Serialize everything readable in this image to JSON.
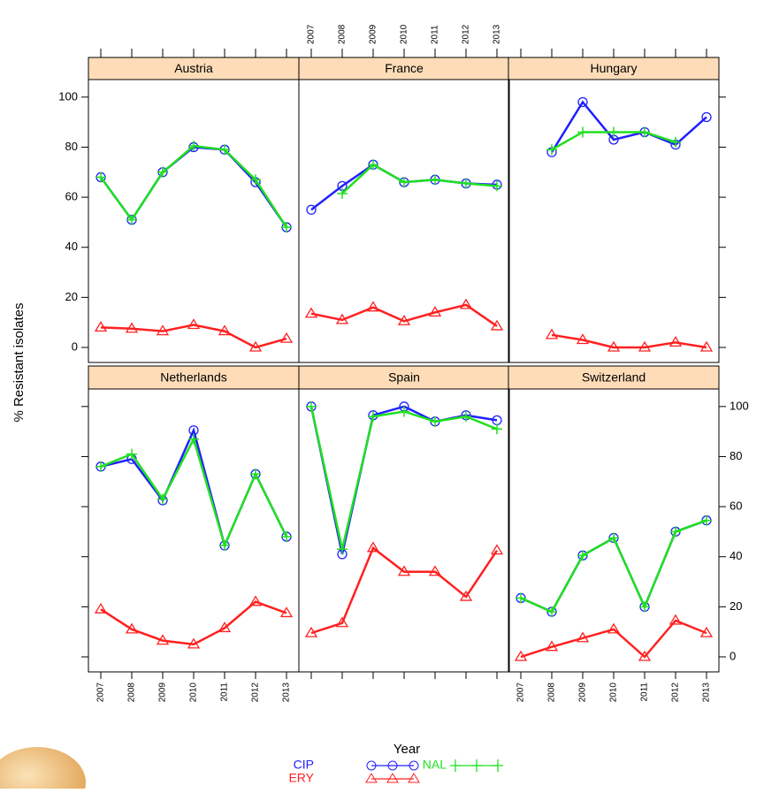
{
  "chart_data": {
    "type": "line",
    "x_label": "Year",
    "y_label": "% Resistant isolates",
    "x": [
      2007,
      2008,
      2009,
      2010,
      2011,
      2012,
      2013
    ],
    "xlim": [
      2006.6,
      2013.4
    ],
    "xticks": [
      2007,
      2008,
      2009,
      2010,
      2011,
      2012,
      2013
    ],
    "ylim": [
      -6,
      107
    ],
    "yticks": [
      0,
      20,
      40,
      60,
      80,
      100
    ],
    "legend": [
      {
        "name": "CIP",
        "color": "#2020ff",
        "marker": "circle"
      },
      {
        "name": "ERY",
        "color": "#ff2020",
        "marker": "triangle"
      },
      {
        "name": "NAL",
        "color": "#20e020",
        "marker": "plus"
      }
    ],
    "panels": [
      {
        "title": "Austria",
        "series": [
          {
            "values": [
              68,
              51,
              70,
              80,
              79,
              66,
              48
            ]
          },
          {
            "values": [
              8,
              7.5,
              6.5,
              9,
              6.5,
              0,
              3.5
            ]
          },
          {
            "values": [
              68,
              51,
              70,
              80.5,
              79,
              67,
              48
            ]
          }
        ]
      },
      {
        "title": "France",
        "series": [
          {
            "values": [
              55,
              64.5,
              73,
              66,
              67,
              65.5,
              65
            ]
          },
          {
            "values": [
              13.5,
              11,
              16,
              10.5,
              14,
              17,
              8.5
            ]
          },
          {
            "values": [
              null,
              61.5,
              73,
              66,
              67,
              65.5,
              64.5
            ]
          }
        ]
      },
      {
        "title": "Hungary",
        "series": [
          {
            "values": [
              null,
              78,
              98,
              83,
              86,
              81,
              92
            ]
          },
          {
            "values": [
              null,
              5,
              3,
              0,
              0,
              2,
              0
            ]
          },
          {
            "values": [
              null,
              79,
              86,
              86,
              86,
              82,
              null
            ]
          }
        ]
      },
      {
        "title": "Netherlands",
        "series": [
          {
            "values": [
              76,
              79,
              62.5,
              90.5,
              44.5,
              73,
              48
            ]
          },
          {
            "values": [
              19,
              11,
              6.5,
              5,
              11.5,
              22,
              17.5
            ]
          },
          {
            "values": [
              76,
              81,
              63,
              87,
              44.5,
              73,
              48
            ]
          }
        ]
      },
      {
        "title": "Spain",
        "series": [
          {
            "values": [
              100,
              41,
              96.5,
              100,
              94,
              96.5,
              94.5
            ]
          },
          {
            "values": [
              9.5,
              13.5,
              43.5,
              34,
              34,
              24,
              42.5
            ]
          },
          {
            "values": [
              100,
              43,
              96,
              98,
              94,
              96,
              91
            ]
          }
        ]
      },
      {
        "title": "Switzerland",
        "series": [
          {
            "values": [
              23.5,
              18,
              40.5,
              47.5,
              20,
              50,
              54.5
            ]
          },
          {
            "values": [
              0,
              4,
              7.5,
              11,
              0,
              14.5,
              9.5
            ]
          },
          {
            "values": [
              23.5,
              18,
              40.5,
              47.5,
              20,
              50,
              54.5
            ]
          }
        ]
      }
    ]
  }
}
